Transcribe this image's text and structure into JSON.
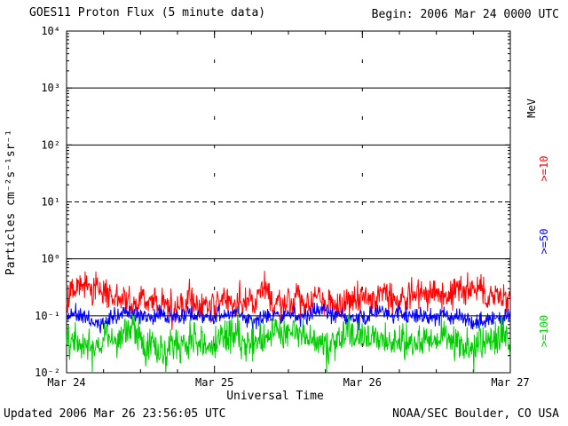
{
  "header": {
    "begin": "Begin: 2006 Mar 24 0000 UTC"
  },
  "footer": {
    "updated": "Updated 2006 Mar 26 23:56:05 UTC",
    "source": "NOAA/SEC Boulder, CO USA"
  },
  "chart_data": {
    "type": "line",
    "title": "GOES11 Proton Flux (5 minute data)",
    "xlabel": "Universal Time",
    "ylabel": "Particles cm⁻²s⁻¹sr⁻¹",
    "x_tick_labels": [
      "Mar 24",
      "Mar 25",
      "Mar 26",
      "Mar 27"
    ],
    "y_tick_labels": [
      "10⁻²",
      "10⁻¹",
      "10⁰",
      "10¹",
      "10²",
      "10³",
      "10⁴"
    ],
    "ylim_exp": [
      -2,
      4
    ],
    "days": 3,
    "points_per_day": 288,
    "grid": {
      "h_solid_exp": [
        -1,
        0,
        2,
        3
      ],
      "h_dashed_exp": [
        1
      ],
      "v_dotted_days": [
        1,
        2
      ],
      "legend": "horizontal solid lines at 0.1, 1, 100, 1000; dashed alert threshold at 10; dotted vertical lines at day boundaries"
    },
    "right_axis_labels": [
      {
        "text": "MeV",
        "color": "#000000"
      },
      {
        "text": ">=10",
        "color": "#ff0000"
      },
      {
        "text": ">=50",
        "color": "#0000ff"
      },
      {
        "text": ">=100",
        "color": "#00cc00"
      }
    ],
    "series": [
      {
        "name": ">=10 MeV",
        "color": "#ff0000",
        "log10_mean": -0.68,
        "fast_std": 0.13,
        "slow_std": 0.03,
        "spike_prob": 0.02,
        "spike_sign": 1,
        "seed": 7,
        "approx_level_note": "noisy band ~0.1 to 0.5 particles, peaks ~0.6"
      },
      {
        "name": ">=50 MeV",
        "color": "#0000ff",
        "log10_mean": -1.0,
        "fast_std": 0.07,
        "slow_std": 0.015,
        "spike_prob": 0.0,
        "spike_sign": 1,
        "seed": 11,
        "approx_level_note": "tight band around 0.1 particles"
      },
      {
        "name": ">=100 MeV",
        "color": "#00cc00",
        "log10_mean": -1.45,
        "fast_std": 0.15,
        "slow_std": 0.03,
        "spike_prob": 0.02,
        "spike_sign": -1,
        "seed": 23,
        "approx_level_note": "noisy band ~0.015 to 0.09 particles, dips toward 0.01"
      }
    ]
  }
}
